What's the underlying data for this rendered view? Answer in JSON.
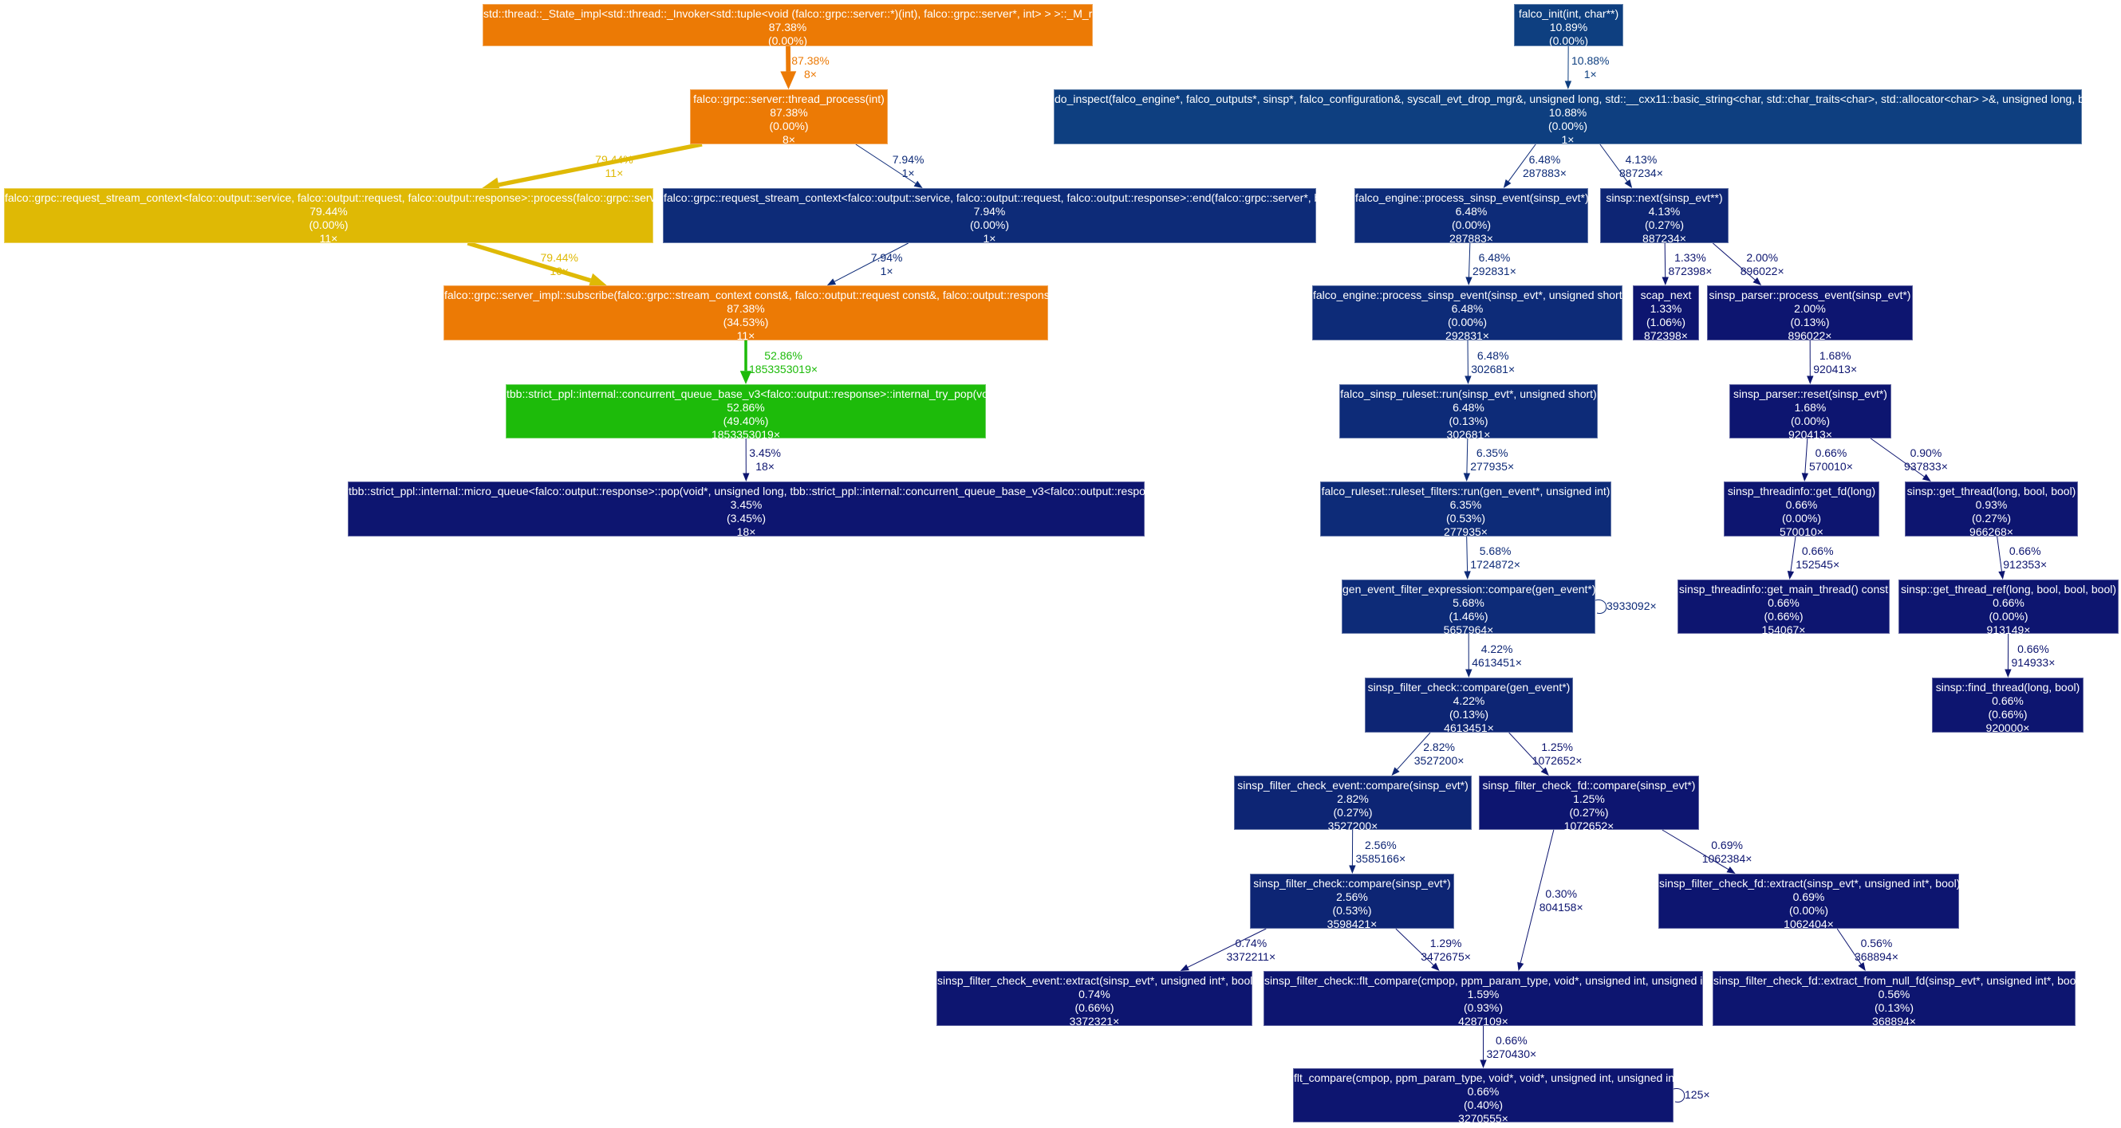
{
  "colors": {
    "orange": "#ec7a05",
    "yellow": "#dfb905",
    "green": "#1dbb0a",
    "blue_1": "#0e3f80",
    "blue_2": "#0d2b78",
    "blue_3": "#0d2574",
    "blue_4": "#0d1570",
    "edge_light": "#6b6fb8"
  },
  "nodes": [
    {
      "id": "n1",
      "name": "std::thread::_State_impl<std::thread::_Invoker<std::tuple<void (falco::grpc::server::*)(int), falco::grpc::server*, int> > >::_M_run()",
      "total": "87.38%",
      "self": "(0.00%)",
      "calls": "",
      "color": "orange"
    },
    {
      "id": "n2",
      "name": "falco::grpc::server::thread_process(int)",
      "total": "87.38%",
      "self": "(0.00%)",
      "calls": "8×",
      "color": "orange"
    },
    {
      "id": "n3",
      "name": "falco::grpc::request_stream_context<falco::output::service, falco::output::request, falco::output::response>::process(falco::grpc::server*)",
      "total": "79.44%",
      "self": "(0.00%)",
      "calls": "11×",
      "color": "yellow"
    },
    {
      "id": "n4",
      "name": "falco::grpc::request_stream_context<falco::output::service, falco::output::request, falco::output::response>::end(falco::grpc::server*, bool)",
      "total": "7.94%",
      "self": "(0.00%)",
      "calls": "1×",
      "color": "blue_2"
    },
    {
      "id": "n5",
      "name": "falco::grpc::server_impl::subscribe(falco::grpc::stream_context const&, falco::output::request const&, falco::output::response&)",
      "total": "87.38%",
      "self": "(34.53%)",
      "calls": "11×",
      "color": "orange"
    },
    {
      "id": "n6",
      "name": "tbb::strict_ppl::internal::concurrent_queue_base_v3<falco::output::response>::internal_try_pop(void*)",
      "total": "52.86%",
      "self": "(49.40%)",
      "calls": "1853353019×",
      "color": "green"
    },
    {
      "id": "n7",
      "name": "tbb::strict_ppl::internal::micro_queue<falco::output::response>::pop(void*, unsigned long, tbb::strict_ppl::internal::concurrent_queue_base_v3<falco::output::response>&)",
      "total": "3.45%",
      "self": "(3.45%)",
      "calls": "18×",
      "color": "blue_4"
    },
    {
      "id": "n8",
      "name": "falco_init(int, char**)",
      "total": "10.89%",
      "self": "(0.00%)",
      "calls": "",
      "color": "blue_1"
    },
    {
      "id": "n9",
      "name": "do_inspect(falco_engine*, falco_outputs*, sinsp*, falco_configuration&, syscall_evt_drop_mgr&, unsigned long, std::__cxx11::basic_string<char, std::char_traits<char>, std::allocator<char> >&, unsigned long, bool, int&)",
      "total": "10.88%",
      "self": "(0.00%)",
      "calls": "1×",
      "color": "blue_1"
    },
    {
      "id": "n10",
      "name": "falco_engine::process_sinsp_event(sinsp_evt*)",
      "total": "6.48%",
      "self": "(0.00%)",
      "calls": "287883×",
      "color": "blue_2"
    },
    {
      "id": "n11",
      "name": "sinsp::next(sinsp_evt**)",
      "total": "4.13%",
      "self": "(0.27%)",
      "calls": "887234×",
      "color": "blue_3"
    },
    {
      "id": "n12",
      "name": "falco_engine::process_sinsp_event(sinsp_evt*, unsigned short)",
      "total": "6.48%",
      "self": "(0.00%)",
      "calls": "292831×",
      "color": "blue_2"
    },
    {
      "id": "n13",
      "name": "scap_next",
      "total": "1.33%",
      "self": "(1.06%)",
      "calls": "872398×",
      "color": "blue_4"
    },
    {
      "id": "n14",
      "name": "sinsp_parser::process_event(sinsp_evt*)",
      "total": "2.00%",
      "self": "(0.13%)",
      "calls": "896022×",
      "color": "blue_4"
    },
    {
      "id": "n15",
      "name": "falco_sinsp_ruleset::run(sinsp_evt*, unsigned short)",
      "total": "6.48%",
      "self": "(0.13%)",
      "calls": "302681×",
      "color": "blue_2"
    },
    {
      "id": "n16",
      "name": "sinsp_parser::reset(sinsp_evt*)",
      "total": "1.68%",
      "self": "(0.00%)",
      "calls": "920413×",
      "color": "blue_4"
    },
    {
      "id": "n17",
      "name": "falco_ruleset::ruleset_filters::run(gen_event*, unsigned int)",
      "total": "6.35%",
      "self": "(0.53%)",
      "calls": "277935×",
      "color": "blue_2"
    },
    {
      "id": "n18",
      "name": "sinsp_threadinfo::get_fd(long)",
      "total": "0.66%",
      "self": "(0.00%)",
      "calls": "570010×",
      "color": "blue_4"
    },
    {
      "id": "n19",
      "name": "sinsp::get_thread(long, bool, bool)",
      "total": "0.93%",
      "self": "(0.27%)",
      "calls": "966268×",
      "color": "blue_4"
    },
    {
      "id": "n20",
      "name": "gen_event_filter_expression::compare(gen_event*)",
      "total": "5.68%",
      "self": "(1.46%)",
      "calls": "5657964×",
      "color": "blue_2"
    },
    {
      "id": "n21",
      "name": "sinsp_threadinfo::get_main_thread() const",
      "total": "0.66%",
      "self": "(0.66%)",
      "calls": "154067×",
      "color": "blue_4"
    },
    {
      "id": "n22",
      "name": "sinsp::get_thread_ref(long, bool, bool, bool)",
      "total": "0.66%",
      "self": "(0.00%)",
      "calls": "913149×",
      "color": "blue_4"
    },
    {
      "id": "n23",
      "name": "sinsp_filter_check::compare(gen_event*)",
      "total": "4.22%",
      "self": "(0.13%)",
      "calls": "4613451×",
      "color": "blue_3"
    },
    {
      "id": "n24",
      "name": "sinsp::find_thread(long, bool)",
      "total": "0.66%",
      "self": "(0.66%)",
      "calls": "920000×",
      "color": "blue_4"
    },
    {
      "id": "n25",
      "name": "sinsp_filter_check_event::compare(sinsp_evt*)",
      "total": "2.82%",
      "self": "(0.27%)",
      "calls": "3527200×",
      "color": "blue_3"
    },
    {
      "id": "n26",
      "name": "sinsp_filter_check_fd::compare(sinsp_evt*)",
      "total": "1.25%",
      "self": "(0.27%)",
      "calls": "1072652×",
      "color": "blue_4"
    },
    {
      "id": "n27",
      "name": "sinsp_filter_check::compare(sinsp_evt*)",
      "total": "2.56%",
      "self": "(0.53%)",
      "calls": "3598421×",
      "color": "blue_3"
    },
    {
      "id": "n28",
      "name": "sinsp_filter_check_fd::extract(sinsp_evt*, unsigned int*, bool)",
      "total": "0.69%",
      "self": "(0.00%)",
      "calls": "1062404×",
      "color": "blue_4"
    },
    {
      "id": "n29",
      "name": "sinsp_filter_check_event::extract(sinsp_evt*, unsigned int*, bool)",
      "total": "0.74%",
      "self": "(0.66%)",
      "calls": "3372321×",
      "color": "blue_4"
    },
    {
      "id": "n30",
      "name": "sinsp_filter_check::flt_compare(cmpop, ppm_param_type, void*, unsigned int, unsigned int)",
      "total": "1.59%",
      "self": "(0.93%)",
      "calls": "4287109×",
      "color": "blue_4"
    },
    {
      "id": "n31",
      "name": "sinsp_filter_check_fd::extract_from_null_fd(sinsp_evt*, unsigned int*, bool)",
      "total": "0.56%",
      "self": "(0.13%)",
      "calls": "368894×",
      "color": "blue_4"
    },
    {
      "id": "n32",
      "name": "flt_compare(cmpop, ppm_param_type, void*, void*, unsigned int, unsigned int)",
      "total": "0.66%",
      "self": "(0.40%)",
      "calls": "3270555×",
      "color": "blue_4"
    }
  ],
  "edges": [
    {
      "from": "n1",
      "to": "n2",
      "pct": "87.38%",
      "calls": "8×",
      "color": "orange"
    },
    {
      "from": "n2",
      "to": "n3",
      "pct": "79.44%",
      "calls": "11×",
      "color": "yellow"
    },
    {
      "from": "n2",
      "to": "n4",
      "pct": "7.94%",
      "calls": "1×",
      "color": "blue_2"
    },
    {
      "from": "n3",
      "to": "n5",
      "pct": "79.44%",
      "calls": "10×",
      "color": "yellow"
    },
    {
      "from": "n4",
      "to": "n5",
      "pct": "7.94%",
      "calls": "1×",
      "color": "blue_2"
    },
    {
      "from": "n5",
      "to": "n6",
      "pct": "52.86%",
      "calls": "1853353019×",
      "color": "green"
    },
    {
      "from": "n6",
      "to": "n7",
      "pct": "3.45%",
      "calls": "18×",
      "color": "blue_4"
    },
    {
      "from": "n8",
      "to": "n9",
      "pct": "10.88%",
      "calls": "1×",
      "color": "blue_1"
    },
    {
      "from": "n9",
      "to": "n10",
      "pct": "6.48%",
      "calls": "287883×",
      "color": "blue_2"
    },
    {
      "from": "n9",
      "to": "n11",
      "pct": "4.13%",
      "calls": "887234×",
      "color": "blue_3"
    },
    {
      "from": "n10",
      "to": "n12",
      "pct": "6.48%",
      "calls": "292831×",
      "color": "blue_2"
    },
    {
      "from": "n11",
      "to": "n13",
      "pct": "1.33%",
      "calls": "872398×",
      "color": "blue_4"
    },
    {
      "from": "n11",
      "to": "n14",
      "pct": "2.00%",
      "calls": "896022×",
      "color": "blue_4"
    },
    {
      "from": "n12",
      "to": "n15",
      "pct": "6.48%",
      "calls": "302681×",
      "color": "blue_2"
    },
    {
      "from": "n14",
      "to": "n16",
      "pct": "1.68%",
      "calls": "920413×",
      "color": "blue_4"
    },
    {
      "from": "n15",
      "to": "n17",
      "pct": "6.35%",
      "calls": "277935×",
      "color": "blue_2"
    },
    {
      "from": "n16",
      "to": "n18",
      "pct": "0.66%",
      "calls": "570010×",
      "color": "blue_4"
    },
    {
      "from": "n16",
      "to": "n19",
      "pct": "0.90%",
      "calls": "937833×",
      "color": "blue_4"
    },
    {
      "from": "n17",
      "to": "n20",
      "pct": "5.68%",
      "calls": "1724872×",
      "color": "blue_2"
    },
    {
      "from": "n18",
      "to": "n21",
      "pct": "0.66%",
      "calls": "152545×",
      "color": "blue_4"
    },
    {
      "from": "n19",
      "to": "n22",
      "pct": "0.66%",
      "calls": "912353×",
      "color": "blue_4"
    },
    {
      "from": "n20",
      "to": "n20",
      "pct": "",
      "calls": "3933092×",
      "color": "blue_2"
    },
    {
      "from": "n20",
      "to": "n23",
      "pct": "4.22%",
      "calls": "4613451×",
      "color": "blue_3"
    },
    {
      "from": "n22",
      "to": "n24",
      "pct": "0.66%",
      "calls": "914933×",
      "color": "blue_4"
    },
    {
      "from": "n23",
      "to": "n25",
      "pct": "2.82%",
      "calls": "3527200×",
      "color": "blue_3"
    },
    {
      "from": "n23",
      "to": "n26",
      "pct": "1.25%",
      "calls": "1072652×",
      "color": "blue_4"
    },
    {
      "from": "n25",
      "to": "n27",
      "pct": "2.56%",
      "calls": "3585166×",
      "color": "blue_3"
    },
    {
      "from": "n26",
      "to": "n30",
      "pct": "0.30%",
      "calls": "804158×",
      "color": "blue_4"
    },
    {
      "from": "n26",
      "to": "n28",
      "pct": "0.69%",
      "calls": "1062384×",
      "color": "blue_4"
    },
    {
      "from": "n27",
      "to": "n29",
      "pct": "0.74%",
      "calls": "3372211×",
      "color": "blue_4"
    },
    {
      "from": "n27",
      "to": "n30",
      "pct": "1.29%",
      "calls": "3472675×",
      "color": "blue_4"
    },
    {
      "from": "n28",
      "to": "n31",
      "pct": "0.56%",
      "calls": "368894×",
      "color": "blue_4"
    },
    {
      "from": "n30",
      "to": "n32",
      "pct": "0.66%",
      "calls": "3270430×",
      "color": "blue_4"
    },
    {
      "from": "n32",
      "to": "n32",
      "pct": "",
      "calls": "125×",
      "color": "blue_4"
    }
  ]
}
